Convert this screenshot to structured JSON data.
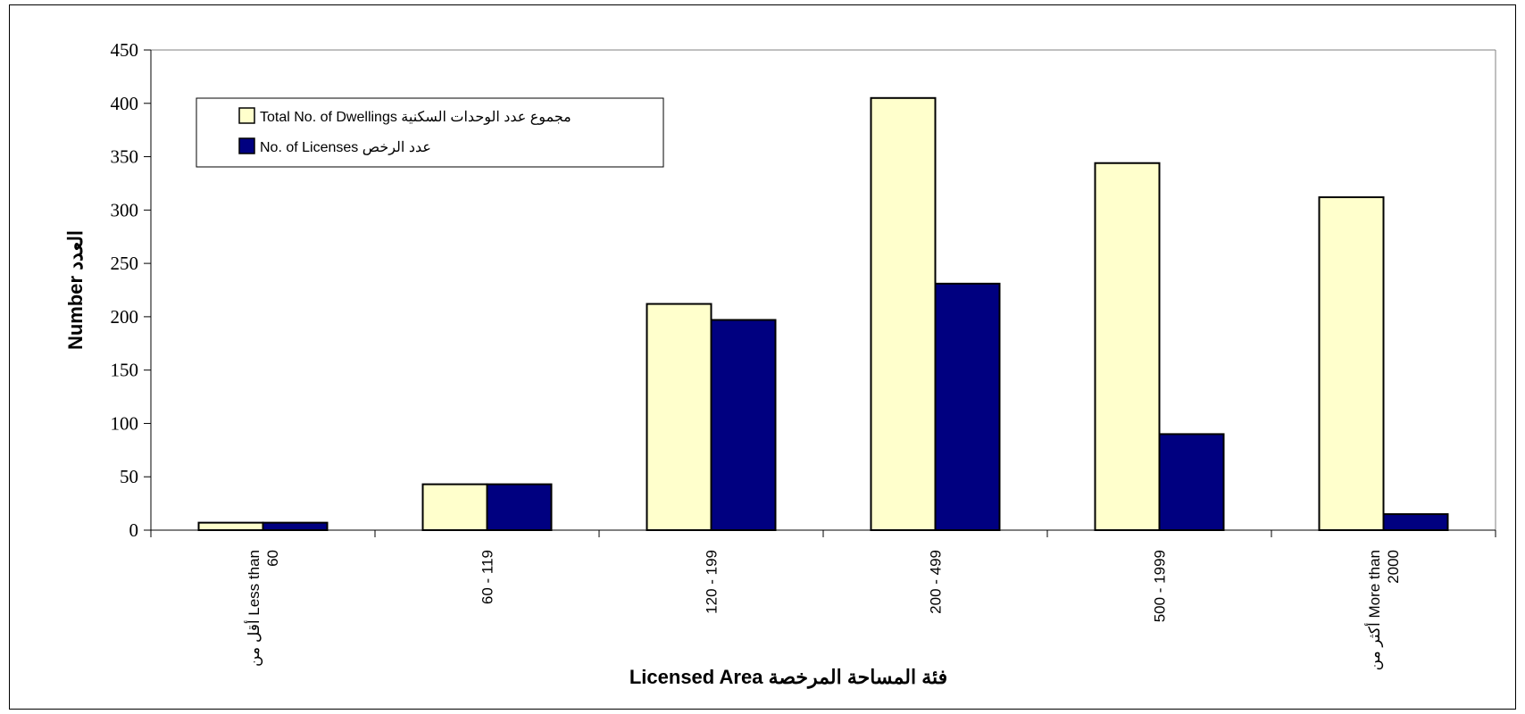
{
  "chart_data": {
    "type": "bar",
    "title": "",
    "xlabel": "Licensed Area فئة المساحة المرخصة",
    "ylabel": "Number العدد",
    "categories": [
      [
        "أقل من Less than",
        "60"
      ],
      [
        "60   -   119"
      ],
      [
        "120 - 199"
      ],
      [
        "200 - 499"
      ],
      [
        "500 - 1999"
      ],
      [
        "أكثر من More than",
        "2000"
      ]
    ],
    "series": [
      {
        "name": "Total No. of  Dwellings مجموع عدد  الوحدات السكنية",
        "values": [
          7,
          43,
          212,
          405,
          344,
          312
        ],
        "color": "#ffffcc"
      },
      {
        "name": "No. of  Licenses عدد الرخص",
        "values": [
          7,
          43,
          197,
          231,
          90,
          15
        ],
        "color": "#000080"
      }
    ],
    "ylim": [
      0,
      450
    ],
    "yticks": [
      0,
      50,
      100,
      150,
      200,
      250,
      300,
      350,
      400,
      450
    ],
    "grid": false,
    "legend_position": "top-left"
  }
}
